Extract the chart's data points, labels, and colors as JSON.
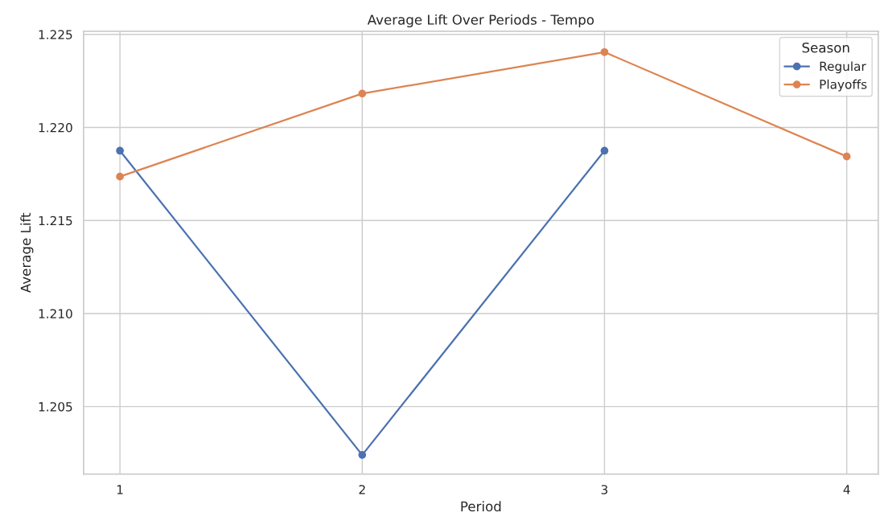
{
  "chart_data": {
    "type": "line",
    "title": "Average Lift Over Periods - Tempo",
    "xlabel": "Period",
    "ylabel": "Average Lift",
    "legend_title": "Season",
    "series": [
      {
        "name": "Regular",
        "color": "#4c72b0",
        "x": [
          1,
          2,
          3
        ],
        "values": [
          1.21875,
          1.2024,
          1.21875
        ]
      },
      {
        "name": "Playoffs",
        "color": "#dd8452",
        "x": [
          1,
          2,
          3,
          4
        ],
        "values": [
          1.21736,
          1.22182,
          1.22405,
          1.21844
        ]
      }
    ],
    "xlim": [
      0.85,
      4.13
    ],
    "xticks": [
      1,
      2,
      3,
      4
    ],
    "ylim": [
      1.20137,
      1.22517
    ],
    "yticks": [
      {
        "value": 1.205,
        "label": "1.205"
      },
      {
        "value": 1.21,
        "label": "1.210"
      },
      {
        "value": 1.215,
        "label": "1.215"
      },
      {
        "value": 1.22,
        "label": "1.220"
      },
      {
        "value": 1.225,
        "label": "1.225"
      }
    ],
    "grid": true,
    "legend": "top right",
    "marker": "circle",
    "line_style": "solid"
  }
}
